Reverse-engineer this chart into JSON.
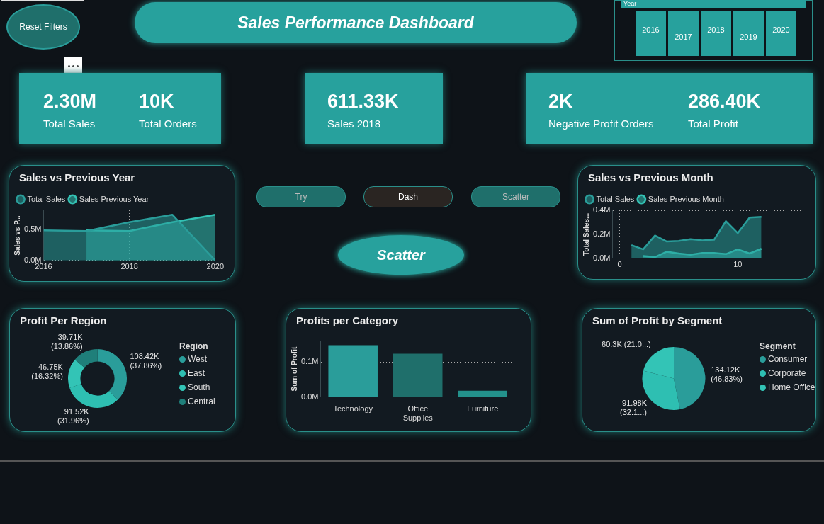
{
  "chart_data": [
    {
      "type": "other",
      "title": "Sales Performance Dashboard",
      "annotations": [
        "Reset Filters",
        "Year",
        "2016",
        "2017",
        "2018",
        "2019",
        "2020",
        "2.30M",
        "Total Sales",
        "10K",
        "Total Orders",
        "611.33K",
        "Sales 2018",
        "2K",
        "Negative Profit Orders",
        "286.40K",
        "Total Profit",
        "Try",
        "Dash",
        "Scatter",
        "Scatter"
      ]
    },
    {
      "type": "area",
      "title": "Sales vs Previous Year",
      "ylabel": "Sales vs P...",
      "x": [
        2016,
        2017,
        2018,
        2019,
        2020
      ],
      "xlim": [
        2016,
        2020
      ],
      "xticks": [
        2016,
        2018,
        2020
      ],
      "ylim": [
        0,
        0.8
      ],
      "yticks": [
        {
          "value": 0,
          "label": "0.0M"
        },
        {
          "value": 0.5,
          "label": "0.5M"
        }
      ],
      "grid": true,
      "legend": "top left",
      "series": [
        {
          "name": "Total Sales",
          "color": "#2a9d9a",
          "values": [
            0.48,
            0.47,
            0.61,
            0.73,
            0
          ]
        },
        {
          "name": "Sales Previous Year",
          "color": "#33c2b4",
          "values": [
            null,
            0.48,
            0.47,
            0.61,
            0.73
          ]
        }
      ]
    },
    {
      "type": "area",
      "title": "Sales vs Previous Month",
      "ylabel": "Total Sales...",
      "x": [
        1,
        2,
        3,
        4,
        5,
        6,
        7,
        8,
        9,
        10,
        11,
        12
      ],
      "xlim": [
        -0.6,
        15.5
      ],
      "xticks": [
        0,
        10
      ],
      "ylim": [
        0,
        0.4
      ],
      "yticks": [
        {
          "value": 0,
          "label": "0.0M"
        },
        {
          "value": 0.2,
          "label": "0.2M"
        },
        {
          "value": 0.4,
          "label": "0.4M"
        }
      ],
      "grid": true,
      "legend": "top left",
      "series": [
        {
          "name": "Total Sales",
          "color": "#2a9d9a",
          "values": [
            0.11,
            0.075,
            0.19,
            0.14,
            0.145,
            0.16,
            0.15,
            0.155,
            0.31,
            0.21,
            0.34,
            0.345
          ]
        },
        {
          "name": "Sales Previous Month",
          "color": "#33c2b4",
          "values": [
            null,
            0.02,
            0.01,
            0.055,
            0.04,
            0.03,
            0.045,
            0.045,
            0.035,
            0.075,
            0.04,
            0.08
          ]
        }
      ]
    },
    {
      "type": "donut",
      "title": "Profit Per Region",
      "legend_title": "Region",
      "legend": "right",
      "categories": [
        "West",
        "East",
        "South",
        "Central"
      ],
      "values": [
        37.86,
        31.96,
        16.32,
        13.86
      ],
      "colors": [
        "#2a9d9a",
        "#2ebfb2",
        "#33c4b6",
        "#1f7f7a"
      ],
      "value_labels": [
        "108.42K (37.86%)",
        "91.52K (31.96%)",
        "46.75K (16.32%)",
        "39.71K (13.86%)"
      ]
    },
    {
      "type": "bar",
      "title": "Profits per Category",
      "ylabel": "Sum of Profit",
      "categories": [
        "Technology",
        "Office Supplies",
        "Furniture"
      ],
      "values": [
        0.148,
        0.124,
        0.018
      ],
      "colors": [
        "#2a9d9a",
        "#1f6f6b",
        "#23918b"
      ],
      "ylim": [
        0,
        0.16
      ],
      "yticks": [
        {
          "value": 0,
          "label": "0.0M"
        },
        {
          "value": 0.1,
          "label": "0.1M"
        }
      ],
      "grid": "y"
    },
    {
      "type": "pie",
      "title": "Sum of Profit by Segment",
      "legend_title": "Segment",
      "legend": "right",
      "categories": [
        "Consumer",
        "Corporate",
        "Home Office"
      ],
      "values": [
        46.83,
        32.12,
        21.05
      ],
      "colors": [
        "#2a9d9a",
        "#2ebfb2",
        "#33c4b6"
      ],
      "value_labels": [
        "134.12K (46.83%)",
        "91.98K (32.1...)",
        "60.3K (21.0...)"
      ]
    }
  ]
}
